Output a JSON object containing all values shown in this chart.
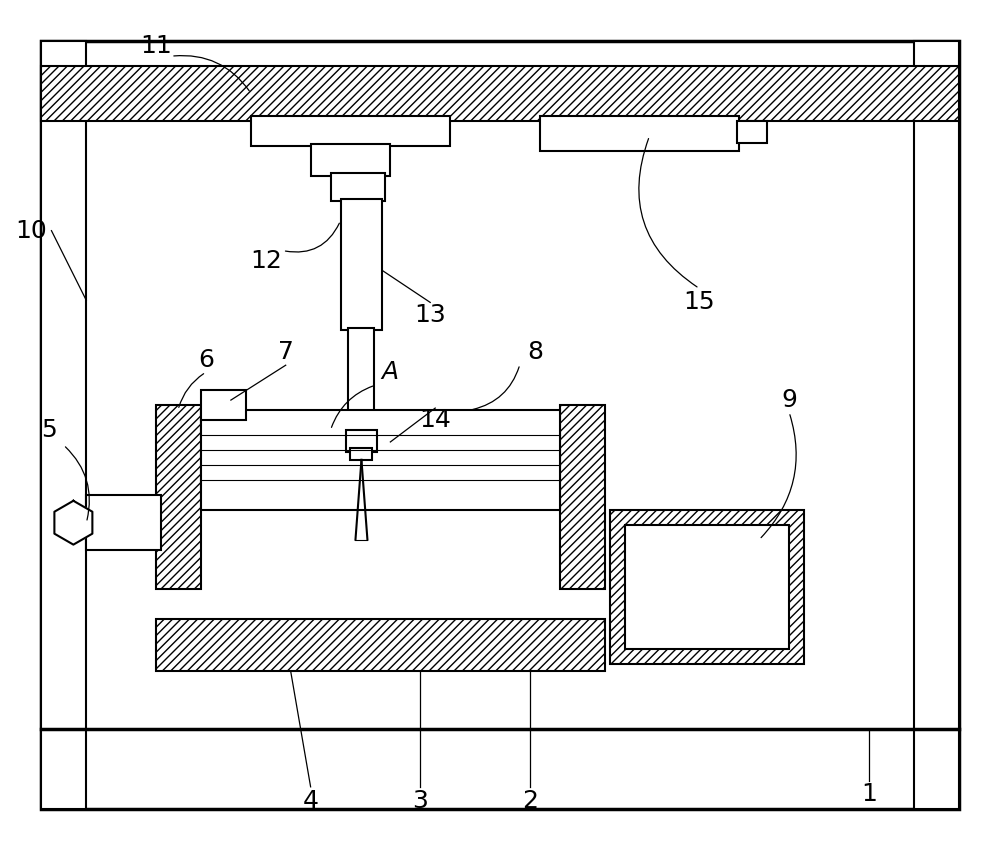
{
  "bg_color": "#ffffff",
  "line_color": "#000000",
  "fig_width": 10.0,
  "fig_height": 8.6,
  "label_fontsize": 18,
  "label_color": "#000000"
}
